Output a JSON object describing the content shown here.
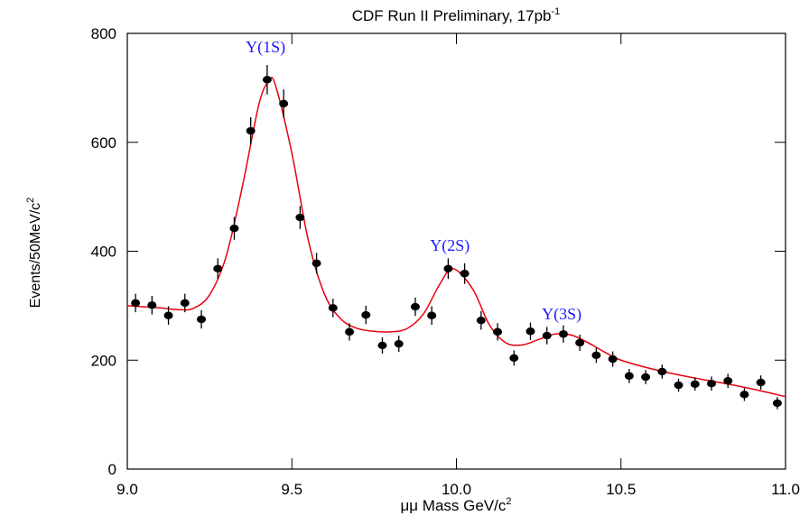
{
  "chart_data": {
    "type": "scatter",
    "title": {
      "text": "CDF Run II Preliminary, 17pb",
      "superscript": "-1"
    },
    "x_label": {
      "text": "μμ Mass GeV/c",
      "superscript": "2"
    },
    "y_label": {
      "text": "Events/50MeV/c",
      "superscript": "2"
    },
    "annotations": [
      "Υ(1S)",
      "Υ(2S)",
      "Υ(3S)"
    ],
    "xlim": [
      9.0,
      11.0
    ],
    "ylim": [
      0,
      800
    ],
    "xticks": [
      {
        "value": 9.0,
        "label": "9.0"
      },
      9.5,
      {
        "value": 10.0,
        "label": "10.0"
      },
      10.5,
      {
        "value": 11.0,
        "label": "11.0"
      }
    ],
    "yticks": [
      0,
      200,
      400,
      600,
      800
    ],
    "points": {
      "color": "#000000",
      "x": [
        9.025,
        9.075,
        9.125,
        9.175,
        9.225,
        9.275,
        9.325,
        9.375,
        9.425,
        9.475,
        9.525,
        9.575,
        9.625,
        9.675,
        9.725,
        9.775,
        9.825,
        9.875,
        9.925,
        9.975,
        10.025,
        10.075,
        10.125,
        10.175,
        10.225,
        10.275,
        10.325,
        10.375,
        10.425,
        10.475,
        10.525,
        10.575,
        10.625,
        10.675,
        10.725,
        10.775,
        10.825,
        10.875,
        10.925,
        10.975
      ],
      "values": [
        305,
        301,
        282,
        305,
        275,
        368,
        442,
        621,
        715,
        671,
        462,
        378,
        296,
        252,
        283,
        227,
        230,
        298,
        282,
        368,
        359,
        273,
        252,
        204,
        253,
        245,
        248,
        232,
        209,
        202,
        171,
        169,
        179,
        154,
        156,
        157,
        162,
        137,
        159,
        121
      ],
      "errors": [
        17,
        17,
        17,
        17,
        17,
        19,
        21,
        25,
        27,
        26,
        21,
        19,
        17,
        16,
        17,
        15,
        15,
        17,
        17,
        19,
        19,
        17,
        16,
        14,
        16,
        16,
        16,
        15,
        14,
        14,
        13,
        13,
        13,
        12,
        12,
        13,
        13,
        12,
        13,
        11
      ]
    },
    "fit": {
      "color": "#e8000b",
      "x": [
        9.0,
        9.05,
        9.1,
        9.15,
        9.2,
        9.25,
        9.3,
        9.35,
        9.4,
        9.43,
        9.45,
        9.5,
        9.55,
        9.6,
        9.65,
        9.7,
        9.75,
        9.8,
        9.85,
        9.9,
        9.95,
        9.99,
        10.05,
        10.1,
        10.15,
        10.2,
        10.25,
        10.3,
        10.35,
        10.4,
        10.45,
        10.5,
        10.6,
        10.7,
        10.8,
        10.9,
        11.0
      ],
      "values": [
        300,
        298,
        296,
        293,
        295,
        320,
        390,
        520,
        670,
        712,
        705,
        580,
        420,
        320,
        275,
        258,
        253,
        252,
        258,
        285,
        340,
        368,
        330,
        265,
        232,
        228,
        238,
        248,
        246,
        232,
        215,
        200,
        183,
        170,
        159,
        147,
        133
      ]
    }
  }
}
